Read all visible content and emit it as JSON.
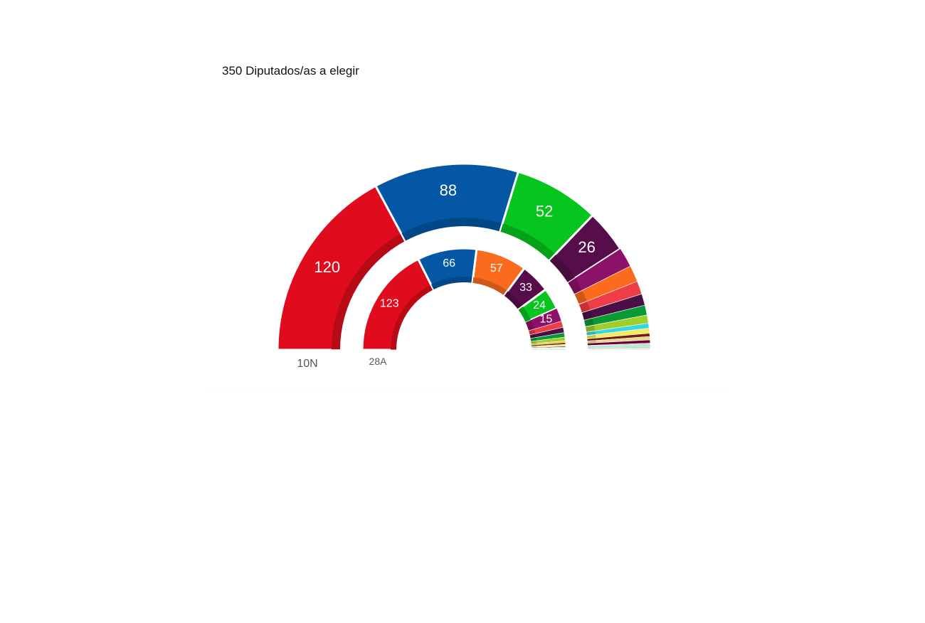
{
  "header": {
    "title": "350 Diputados/as a elegir"
  },
  "chart_data": {
    "type": "pie",
    "subtype": "half-donut",
    "total_seats": 350,
    "rings": [
      {
        "name": "10N",
        "segments": [
          {
            "value": 120,
            "color": "#e00b1c",
            "label": "120"
          },
          {
            "value": 88,
            "color": "#0357a4",
            "label": "88"
          },
          {
            "value": 52,
            "color": "#06c51f",
            "label": "52"
          },
          {
            "value": 26,
            "color": "#570d4a",
            "label": "26"
          },
          {
            "value": 12,
            "color": "#8c1168",
            "label": ""
          },
          {
            "value": 10,
            "color": "#fa6b1e",
            "label": ""
          },
          {
            "value": 8,
            "color": "#ee3d46",
            "label": ""
          },
          {
            "value": 7,
            "color": "#4a0f46",
            "label": ""
          },
          {
            "value": 6,
            "color": "#0a9a35",
            "label": ""
          },
          {
            "value": 5,
            "color": "#a0cf2a",
            "label": ""
          },
          {
            "value": 3,
            "color": "#35d7e7",
            "label": ""
          },
          {
            "value": 3,
            "color": "#f2ec5c",
            "label": ""
          },
          {
            "value": 2,
            "color": "#7a1c0d",
            "label": ""
          },
          {
            "value": 2,
            "color": "#e5d68f",
            "label": ""
          },
          {
            "value": 2,
            "color": "#6b0034",
            "label": ""
          },
          {
            "value": 1,
            "color": "#c8d5d5",
            "label": ""
          },
          {
            "value": 1,
            "color": "#7fe2d4",
            "label": ""
          },
          {
            "value": 1,
            "color": "#bcd3a6",
            "label": ""
          },
          {
            "value": 1,
            "color": "#e9eaea",
            "label": ""
          }
        ]
      },
      {
        "name": "28A",
        "segments": [
          {
            "value": 123,
            "color": "#e00b1c",
            "label": "123"
          },
          {
            "value": 66,
            "color": "#0357a4",
            "label": "66"
          },
          {
            "value": 57,
            "color": "#fa6b1e",
            "label": "57"
          },
          {
            "value": 33,
            "color": "#570d4a",
            "label": "33"
          },
          {
            "value": 24,
            "color": "#06c51f",
            "label": "24"
          },
          {
            "value": 15,
            "color": "#8c1168",
            "label": "15"
          },
          {
            "value": 7,
            "color": "#ee3d46",
            "label": ""
          },
          {
            "value": 6,
            "color": "#4a0f46",
            "label": ""
          },
          {
            "value": 5,
            "color": "#0a9a35",
            "label": ""
          },
          {
            "value": 4,
            "color": "#a0cf2a",
            "label": ""
          },
          {
            "value": 2,
            "color": "#e5c62a",
            "label": ""
          },
          {
            "value": 2,
            "color": "#7a1c0d",
            "label": ""
          },
          {
            "value": 2,
            "color": "#f2ec5c",
            "label": ""
          },
          {
            "value": 1,
            "color": "#2a2a2a",
            "label": ""
          },
          {
            "value": 1,
            "color": "#c8d5d5",
            "label": ""
          },
          {
            "value": 1,
            "color": "#e9eaea",
            "label": ""
          },
          {
            "value": 1,
            "color": "#bcd3a6",
            "label": ""
          }
        ]
      }
    ]
  }
}
